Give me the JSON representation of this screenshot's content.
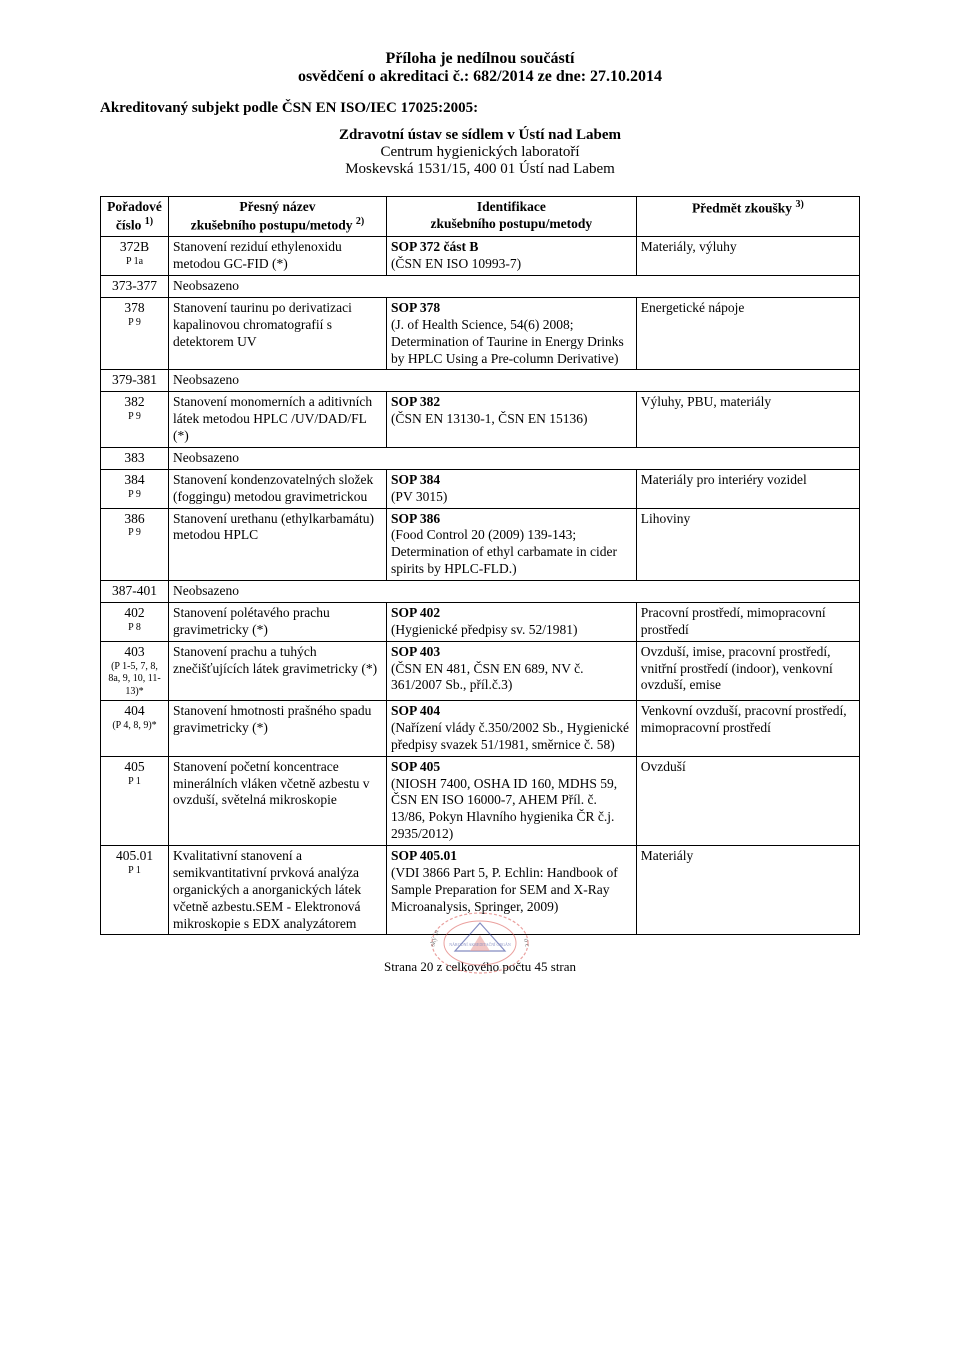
{
  "header": {
    "line1": "Příloha je nedílnou součástí",
    "line2": "osvědčení o akreditaci č.: 682/2014   ze dne: 27.10.2014",
    "line3": "Akreditovaný subjekt podle ČSN EN ISO/IEC 17025:2005:",
    "line4": "Zdravotní ústav se sídlem v Ústí nad Labem",
    "line5": "Centrum hygienických laboratoří",
    "line6": "Moskevská 1531/15, 400 01 Ústí nad Labem"
  },
  "columns": {
    "c1a": "Pořadové",
    "c1b": "číslo",
    "c1sup": "1)",
    "c2a": "Přesný název",
    "c2b": "zkušebního postupu/metody",
    "c2sup": "2)",
    "c3a": "Identifikace",
    "c3b": "zkušebního postupu/metody",
    "c4a": "Předmět zkoušky",
    "c4sup": "3)"
  },
  "rows": [
    {
      "num": "372B",
      "sub": "P 1a",
      "name": "Stanovení reziduí ethylenoxidu metodou GC-FID (*)",
      "id_b": "SOP 372 část B",
      "id_r": "(ČSN EN ISO 10993-7)",
      "subj": "Materiály, výluhy"
    },
    {
      "num": "373-377",
      "name": "Neobsazeno",
      "span": true
    },
    {
      "num": "378",
      "sub": "P 9",
      "name": "Stanovení taurinu po derivatizaci kapalinovou chromatografií s detektorem UV",
      "id_b": "SOP 378",
      "id_r": "(J. of Health Science, 54(6) 2008; Determination of Taurine in Energy Drinks by HPLC Using a Pre-column Derivative)",
      "subj": "Energetické nápoje"
    },
    {
      "num": "379-381",
      "name": "Neobsazeno",
      "span": true
    },
    {
      "num": "382",
      "sub": "P 9",
      "name": "Stanovení monomerních a aditivních látek metodou HPLC /UV/DAD/FL (*)",
      "id_b": "SOP 382",
      "id_r": "(ČSN EN 13130-1, ČSN EN 15136)",
      "subj": "Výluhy, PBU, materiály"
    },
    {
      "num": "383",
      "name": "Neobsazeno",
      "span": true
    },
    {
      "num": "384",
      "sub": "P 9",
      "name": "Stanovení kondenzovatelných složek (foggingu) metodou gravimetrickou",
      "id_b": "SOP 384",
      "id_r": "(PV 3015)",
      "subj": "Materiály pro interiéry vozidel"
    },
    {
      "num": "386",
      "sub": "P 9",
      "name": "Stanovení urethanu (ethylkarbamátu) metodou HPLC",
      "id_b": "SOP 386",
      "id_r": "(Food Control 20 (2009) 139-143; Determination of ethyl carbamate in cider spirits by HPLC-FLD.)",
      "subj": "Lihoviny"
    },
    {
      "num": "387-401",
      "name": "Neobsazeno",
      "span": true
    },
    {
      "num": "402",
      "sub": "P 8",
      "name": "Stanovení polétavého prachu gravimetricky (*)",
      "id_b": "SOP 402",
      "id_r": "(Hygienické předpisy sv. 52/1981)",
      "subj": "Pracovní prostředí, mimopracovní prostředí"
    },
    {
      "num": "403",
      "sub": "(P 1-5, 7, 8, 8a, 9, 10, 11-13)*",
      "name": "Stanovení prachu a tuhých znečišťujících látek gravimetricky (*)",
      "id_b": "SOP 403",
      "id_r": "(ČSN EN 481, ČSN EN 689, NV č. 361/2007 Sb., příl.č.3)",
      "subj": "Ovzduší, imise, pracovní prostředí, vnitřní prostředí (indoor), venkovní ovzduší, emise"
    },
    {
      "num": "404",
      "sub": "(P 4, 8, 9)*",
      "name": "Stanovení hmotnosti prašného spadu gravimetricky (*)",
      "id_b": "SOP 404",
      "id_r": "(Nařízení vlády č.350/2002 Sb., Hygienické předpisy svazek 51/1981, směrnice č. 58)",
      "subj": "Venkovní ovzduší, pracovní prostředí, mimopracovní prostředí"
    },
    {
      "num": "405",
      "sub": "P 1",
      "name": "Stanovení početní koncentrace minerálních vláken včetně azbestu v ovzduší, světelná mikroskopie",
      "id_b": "SOP 405",
      "id_r": "(NIOSH 7400, OSHA ID 160, MDHS 59, ČSN EN ISO 16000-7, AHEM Příl. č. 13/86, Pokyn Hlavního hygienika ČR č.j. 2935/2012)",
      "subj": "Ovzduší"
    },
    {
      "num": "405.01",
      "sub": "P 1",
      "name": "Kvalitativní stanovení a semikvantitativní prvková analýza organických a anorganických látek včetně azbestu.SEM - Elektronová mikroskopie s EDX analyzátorem",
      "id_b": "SOP 405.01",
      "id_r": "(VDI 3866 Part 5, P. Echlin: Handbook of Sample Preparation for SEM and X-Ray Microanalysis, Springer, 2009)",
      "subj": "Materiály"
    }
  ],
  "footer": {
    "text": "Strana 20 z celkového počtu 45 stran"
  },
  "stamp": {
    "outer_color": "#d9534f",
    "text_color": "#203090",
    "label1": "NÁRODNÍ AKREDITAČNÍ ORGÁN",
    "side_left": "ský in",
    "side_right": "o c"
  }
}
